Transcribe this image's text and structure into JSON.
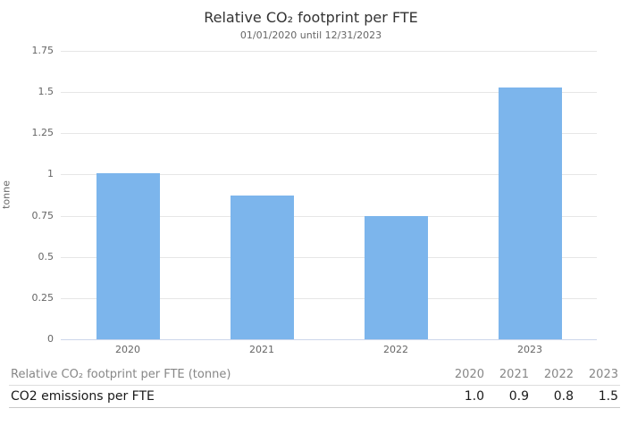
{
  "chart": {
    "title": "Relative CO₂ footprint per FTE",
    "subtitle": "01/01/2020 until 12/31/2023",
    "y_axis_title": "tonne"
  },
  "chart_data": {
    "type": "bar",
    "title": "Relative CO₂ footprint per FTE",
    "subtitle": "01/01/2020 until 12/31/2023",
    "categories": [
      "2020",
      "2021",
      "2022",
      "2023"
    ],
    "values": [
      1.01,
      0.87,
      0.75,
      1.53
    ],
    "xlabel": "",
    "ylabel": "tonne",
    "ylim": [
      0,
      1.75
    ],
    "ytick_step": 0.25,
    "grid": true,
    "legend": "none",
    "bar_color": "#7cb5ec",
    "axis_line_color": "#ccd6eb",
    "gridline_color": "#e6e6e6"
  },
  "table": {
    "header_label": "Relative CO₂ footprint per FTE (tonne)",
    "columns": [
      "2020",
      "2021",
      "2022",
      "2023"
    ],
    "rows": [
      {
        "label": "CO2 emissions per FTE",
        "values": [
          "1.0",
          "0.9",
          "0.8",
          "1.5"
        ]
      }
    ]
  }
}
